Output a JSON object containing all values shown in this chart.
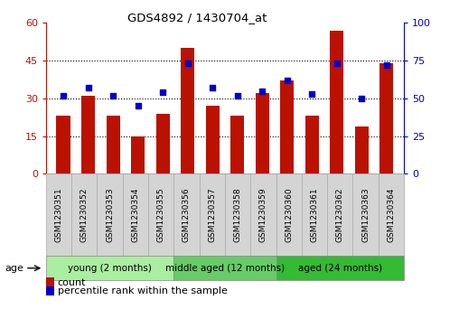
{
  "title": "GDS4892 / 1430704_at",
  "samples": [
    "GSM1230351",
    "GSM1230352",
    "GSM1230353",
    "GSM1230354",
    "GSM1230355",
    "GSM1230356",
    "GSM1230357",
    "GSM1230358",
    "GSM1230359",
    "GSM1230360",
    "GSM1230361",
    "GSM1230362",
    "GSM1230363",
    "GSM1230364"
  ],
  "counts": [
    23,
    31,
    23,
    15,
    24,
    50,
    27,
    23,
    32,
    37,
    23,
    57,
    19,
    44
  ],
  "percentile_ranks": [
    52,
    57,
    52,
    45,
    54,
    73,
    57,
    52,
    55,
    62,
    53,
    73,
    50,
    72
  ],
  "ylim_left": [
    0,
    60
  ],
  "ylim_right": [
    0,
    100
  ],
  "yticks_left": [
    0,
    15,
    30,
    45,
    60
  ],
  "yticks_right": [
    0,
    25,
    50,
    75,
    100
  ],
  "bar_color": "#BB1100",
  "dot_color": "#0000CC",
  "groups": [
    {
      "label": "young (2 months)",
      "start": 0,
      "end": 5,
      "color": "#AAEEA0"
    },
    {
      "label": "middle aged (12 months)",
      "start": 5,
      "end": 9,
      "color": "#66CC66"
    },
    {
      "label": "aged (24 months)",
      "start": 9,
      "end": 14,
      "color": "#33BB33"
    }
  ],
  "age_label": "age",
  "legend_count_label": "count",
  "legend_pct_label": "percentile rank within the sample",
  "background_color": "#ffffff",
  "tick_bg_color": "#d4d4d4",
  "tick_border_color": "#aaaaaa",
  "grid_linestyle": "dotted",
  "grid_color": "#000000",
  "bar_width": 0.55
}
